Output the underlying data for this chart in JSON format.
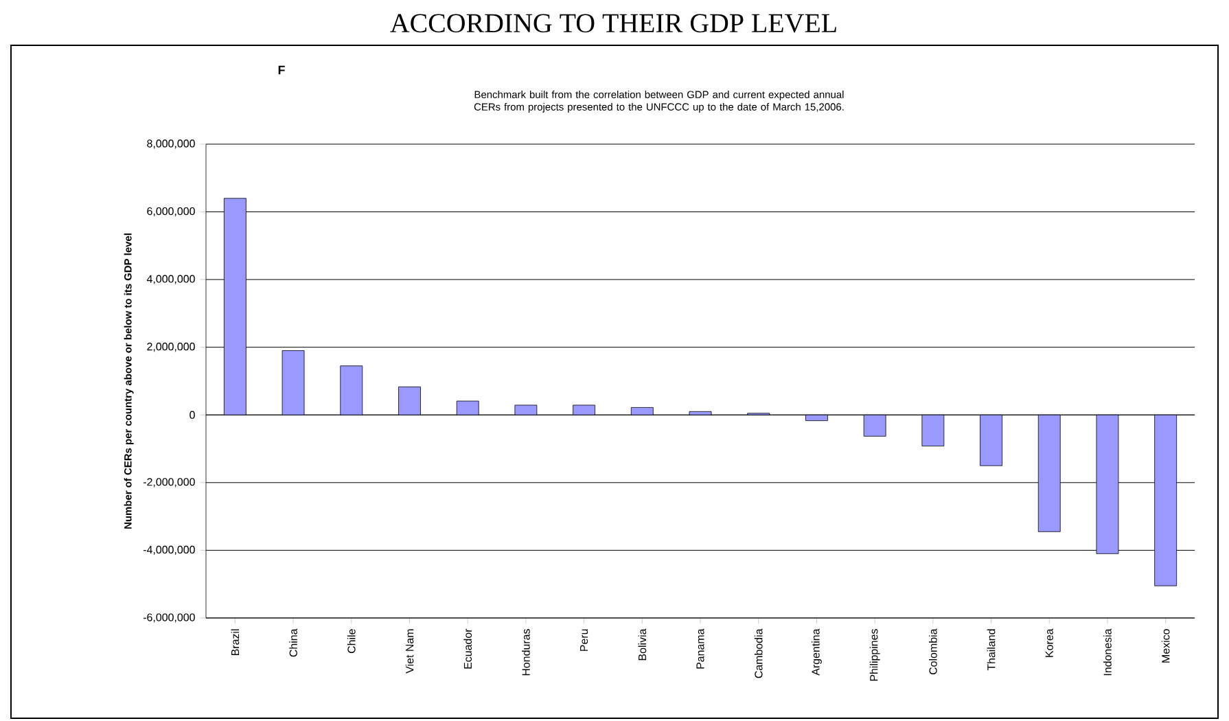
{
  "chart_data": {
    "type": "bar",
    "title": "ACCORDING TO THEIR GDP LEVEL",
    "subtitle": "Benchmark built from the correlation between GDP and current expected annual CERs  from projects presented to the UNFCCC up to the date of March 15,2006.",
    "annotations": [
      "F"
    ],
    "ylabel": "Number of CERs per country above or below to its GDP level",
    "categories": [
      "Brazil",
      "China",
      "Chile",
      "Viet Nam",
      "Ecuador",
      "Honduras",
      "Peru",
      "Bolivia",
      "Panama",
      "Cambodia",
      "Argentina",
      "Philippines",
      "Colombia",
      "Thailand",
      "Korea",
      "Indonesia",
      "Mexico"
    ],
    "values": [
      6400000,
      1900000,
      1450000,
      830000,
      410000,
      290000,
      290000,
      220000,
      100000,
      50000,
      -170000,
      -630000,
      -920000,
      -1500000,
      -3450000,
      -4100000,
      -5050000
    ],
    "color": "#9999ff",
    "ylim": [
      -6000000,
      8000000
    ],
    "yticks": [
      {
        "value": -6000000,
        "label": "-6,000,000"
      },
      {
        "value": -4000000,
        "label": "-4,000,000"
      },
      {
        "value": -2000000,
        "label": "-2,000,000"
      },
      0,
      {
        "value": 2000000,
        "label": "2,000,000"
      },
      {
        "value": 4000000,
        "label": "4,000,000"
      },
      {
        "value": 6000000,
        "label": "6,000,000"
      },
      {
        "value": 8000000,
        "label": "8,000,000"
      }
    ],
    "grid": "y"
  }
}
